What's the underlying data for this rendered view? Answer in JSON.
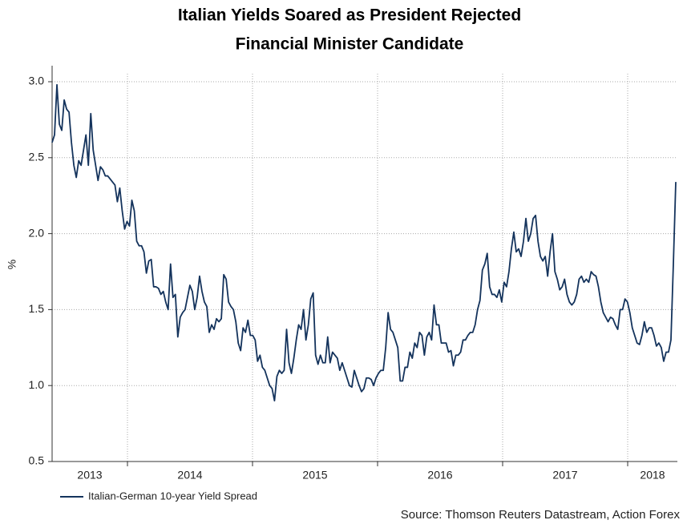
{
  "chart_data": {
    "type": "line",
    "title": [
      "Italian Yields Soared as President Rejected",
      "Financial Minister Candidate"
    ],
    "ylabel": "%",
    "source": "Source: Thomson Reuters Datastream, Action Forex",
    "year_labels": [
      "2013",
      "2014",
      "2015",
      "2016",
      "2017",
      "2018"
    ],
    "ylim": [
      0.5,
      3.0
    ],
    "yticks": [
      0.5,
      {
        "value": 1,
        "label": "1.0"
      },
      1.5,
      {
        "value": 2,
        "label": "2.0"
      },
      2.5,
      {
        "value": 3,
        "label": "3.0"
      }
    ],
    "grid": true,
    "series": [
      {
        "name": "Italian-German 10-year Yield Spread",
        "color": "#14335c",
        "values": [
          2.6,
          2.65,
          2.98,
          2.72,
          2.68,
          2.88,
          2.82,
          2.8,
          2.6,
          2.45,
          2.37,
          2.48,
          2.45,
          2.55,
          2.65,
          2.45,
          2.79,
          2.55,
          2.45,
          2.35,
          2.44,
          2.42,
          2.38,
          2.38,
          2.36,
          2.34,
          2.32,
          2.21,
          2.3,
          2.15,
          2.03,
          2.08,
          2.05,
          2.22,
          2.15,
          1.95,
          1.92,
          1.92,
          1.88,
          1.74,
          1.82,
          1.83,
          1.65,
          1.65,
          1.64,
          1.6,
          1.62,
          1.55,
          1.5,
          1.8,
          1.58,
          1.6,
          1.32,
          1.45,
          1.48,
          1.5,
          1.58,
          1.66,
          1.62,
          1.5,
          1.58,
          1.72,
          1.62,
          1.55,
          1.52,
          1.35,
          1.4,
          1.37,
          1.44,
          1.42,
          1.44,
          1.73,
          1.7,
          1.55,
          1.52,
          1.5,
          1.42,
          1.28,
          1.23,
          1.38,
          1.35,
          1.43,
          1.33,
          1.33,
          1.3,
          1.16,
          1.2,
          1.12,
          1.1,
          1.05,
          1.0,
          0.98,
          0.9,
          1.06,
          1.1,
          1.08,
          1.1,
          1.37,
          1.15,
          1.08,
          1.18,
          1.3,
          1.4,
          1.37,
          1.5,
          1.3,
          1.4,
          1.57,
          1.61,
          1.2,
          1.14,
          1.2,
          1.15,
          1.15,
          1.32,
          1.15,
          1.22,
          1.2,
          1.18,
          1.1,
          1.15,
          1.1,
          1.05,
          1.0,
          0.99,
          1.1,
          1.05,
          1.0,
          0.96,
          0.98,
          1.05,
          1.05,
          1.04,
          1.0,
          1.05,
          1.08,
          1.1,
          1.1,
          1.25,
          1.48,
          1.37,
          1.35,
          1.3,
          1.25,
          1.03,
          1.03,
          1.12,
          1.12,
          1.22,
          1.18,
          1.28,
          1.25,
          1.35,
          1.33,
          1.2,
          1.32,
          1.35,
          1.3,
          1.53,
          1.4,
          1.4,
          1.28,
          1.28,
          1.28,
          1.22,
          1.23,
          1.13,
          1.2,
          1.2,
          1.22,
          1.3,
          1.3,
          1.33,
          1.35,
          1.35,
          1.4,
          1.5,
          1.56,
          1.76,
          1.8,
          1.87,
          1.65,
          1.6,
          1.6,
          1.58,
          1.63,
          1.55,
          1.68,
          1.65,
          1.75,
          1.9,
          2.01,
          1.88,
          1.9,
          1.85,
          1.95,
          2.1,
          1.95,
          2.0,
          2.1,
          2.12,
          1.95,
          1.85,
          1.82,
          1.85,
          1.72,
          1.88,
          2.0,
          1.75,
          1.7,
          1.63,
          1.65,
          1.7,
          1.6,
          1.55,
          1.53,
          1.55,
          1.6,
          1.7,
          1.72,
          1.68,
          1.7,
          1.68,
          1.75,
          1.73,
          1.72,
          1.65,
          1.55,
          1.48,
          1.45,
          1.42,
          1.45,
          1.44,
          1.4,
          1.37,
          1.5,
          1.5,
          1.57,
          1.55,
          1.48,
          1.38,
          1.33,
          1.28,
          1.27,
          1.33,
          1.42,
          1.35,
          1.38,
          1.38,
          1.33,
          1.26,
          1.28,
          1.25,
          1.16,
          1.22,
          1.22,
          1.3,
          1.8,
          2.34
        ]
      }
    ]
  }
}
